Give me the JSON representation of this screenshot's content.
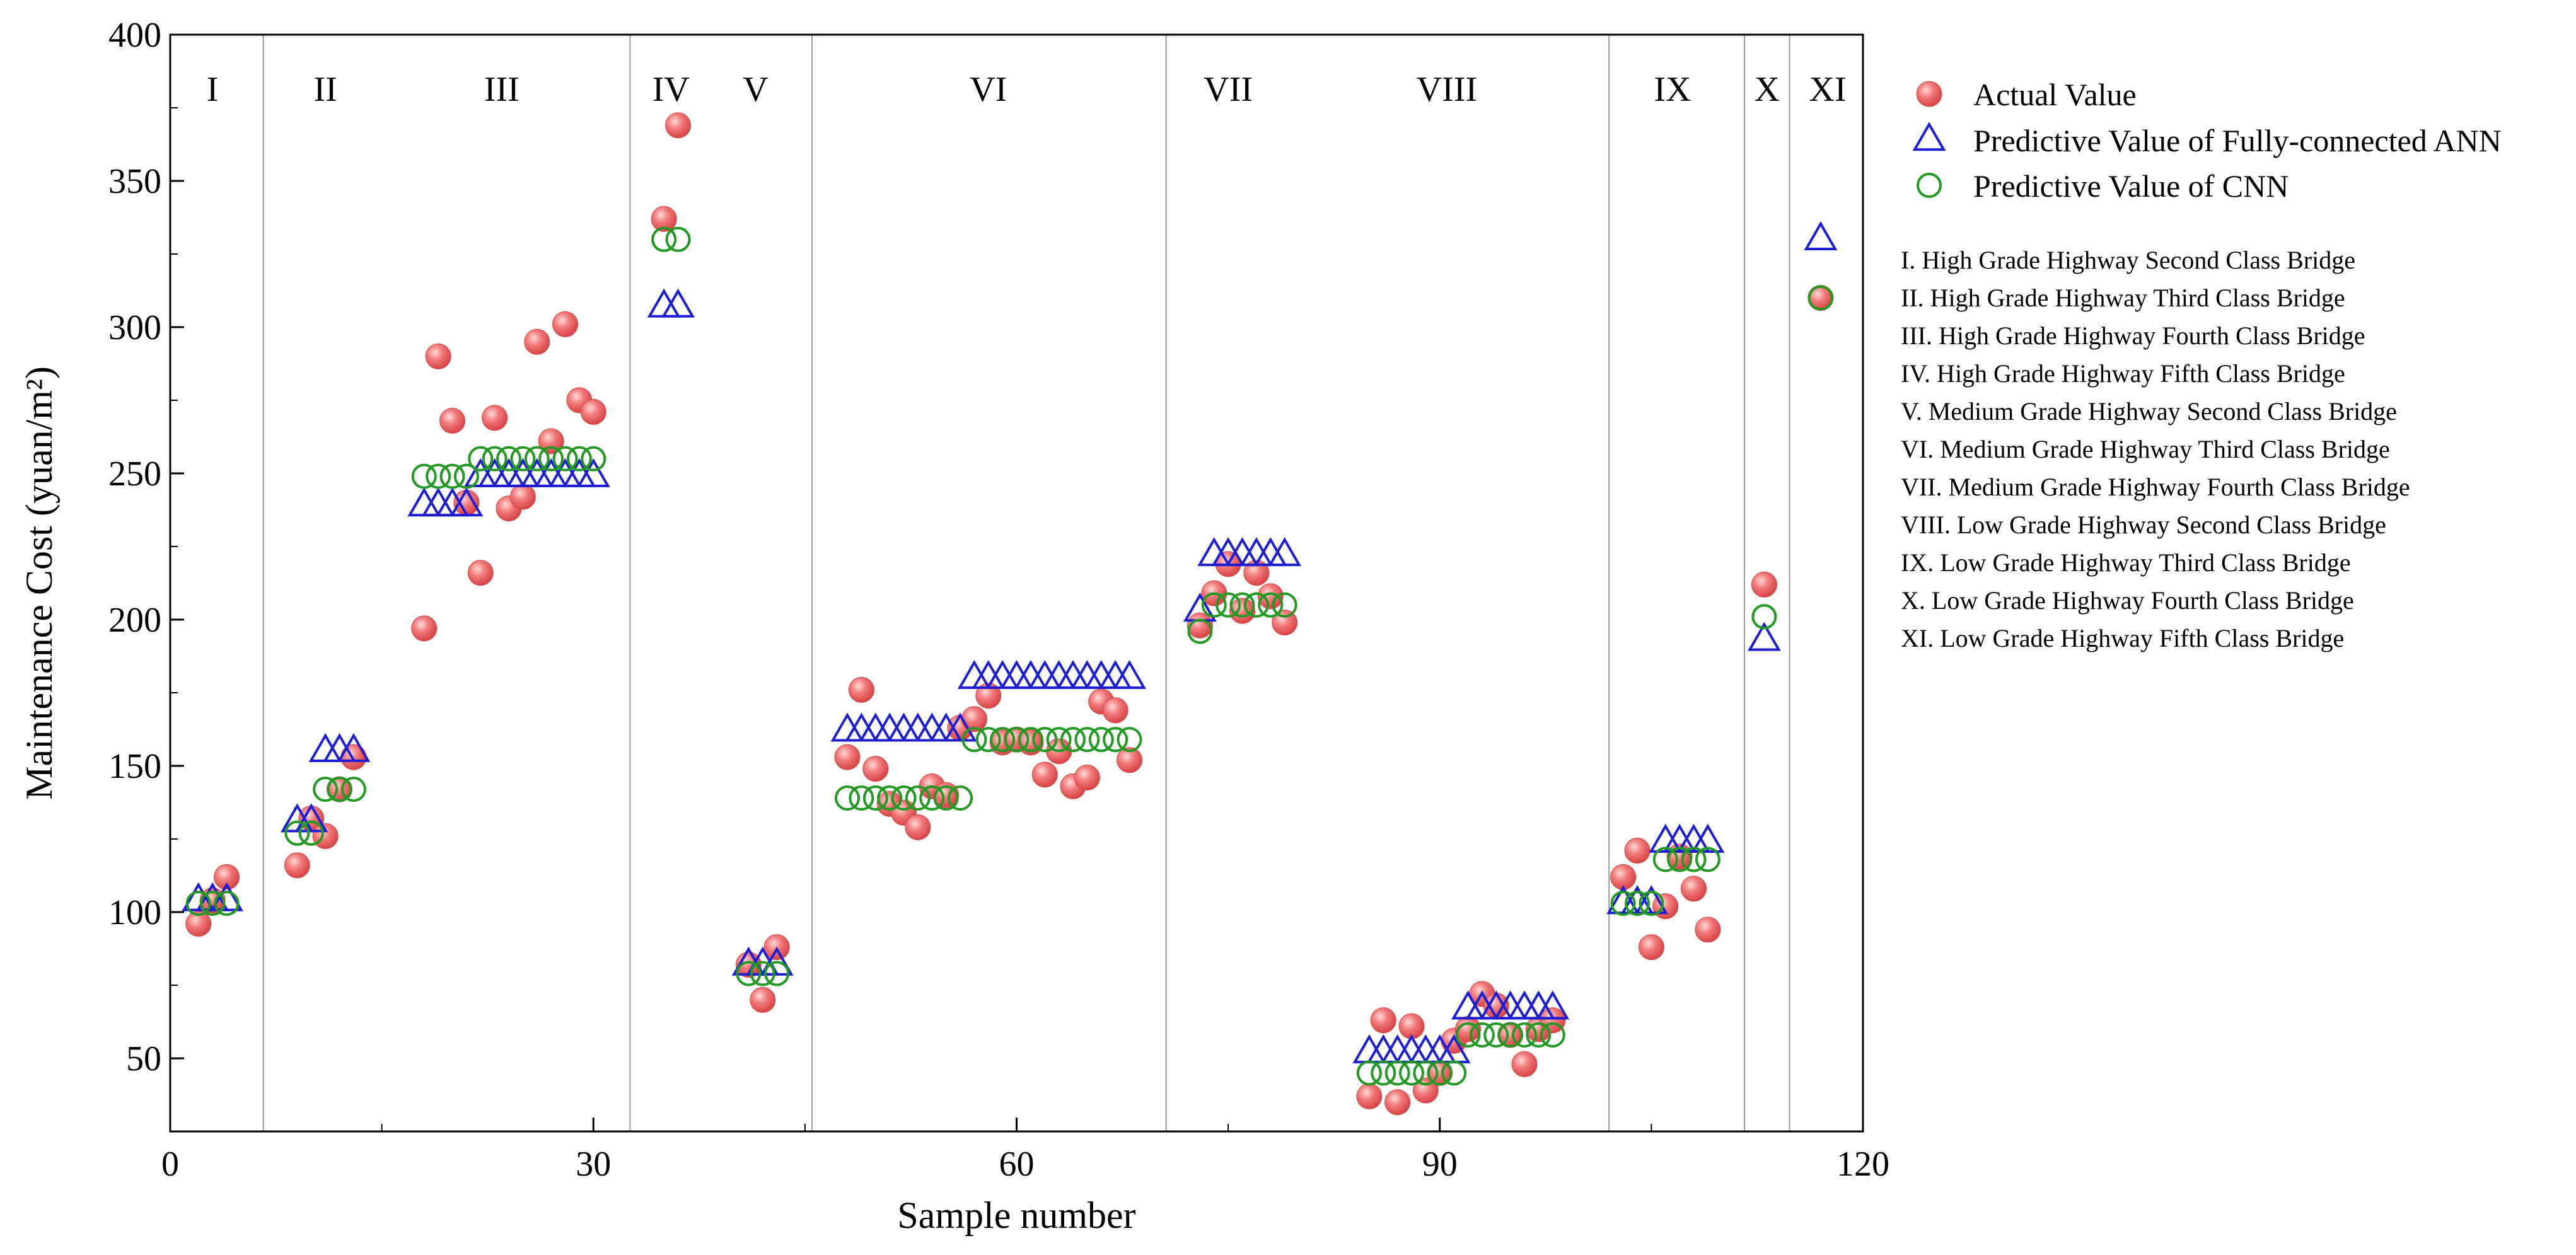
{
  "chart_data": {
    "type": "scatter",
    "xlabel": "Sample number",
    "ylabel": "Maintenance Cost (yuan/m²)",
    "xlim": [
      0,
      120
    ],
    "ylim": [
      25,
      400
    ],
    "x_ticks": [
      0,
      30,
      60,
      90,
      120
    ],
    "y_ticks": [
      50,
      100,
      150,
      200,
      250,
      300,
      350,
      400
    ],
    "grid": false,
    "legend_position": "outside-right",
    "colors": {
      "actual": "#f0686a",
      "ann": "#1d1dd6",
      "cnn": "#229922",
      "divider": "#9a9a9a"
    },
    "group_dividers": [
      6.6,
      32.6,
      45.5,
      70.6,
      102,
      111.6,
      114.8
    ],
    "group_labels": [
      {
        "label": "I",
        "x": 3
      },
      {
        "label": "II",
        "x": 11
      },
      {
        "label": "III",
        "x": 23.5
      },
      {
        "label": "IV",
        "x": 35.5
      },
      {
        "label": "V",
        "x": 41.5
      },
      {
        "label": "VI",
        "x": 58
      },
      {
        "label": "VII",
        "x": 75
      },
      {
        "label": "VIII",
        "x": 90.5
      },
      {
        "label": "IX",
        "x": 106.5
      },
      {
        "label": "X",
        "x": 113.2
      },
      {
        "label": "XI",
        "x": 117.5
      }
    ],
    "series": [
      {
        "name": "Actual Value",
        "marker": "sphere",
        "points": [
          [
            2,
            96
          ],
          [
            3,
            104
          ],
          [
            4,
            112
          ],
          [
            9,
            116
          ],
          [
            10,
            132
          ],
          [
            11,
            126
          ],
          [
            12,
            142
          ],
          [
            13,
            153
          ],
          [
            18,
            197
          ],
          [
            19,
            290
          ],
          [
            20,
            268
          ],
          [
            21,
            240
          ],
          [
            22,
            216
          ],
          [
            23,
            269
          ],
          [
            24,
            238
          ],
          [
            25,
            242
          ],
          [
            26,
            295
          ],
          [
            27,
            261
          ],
          [
            28,
            301
          ],
          [
            29,
            275
          ],
          [
            30,
            271
          ],
          [
            35,
            337
          ],
          [
            36,
            369
          ],
          [
            41,
            82
          ],
          [
            42,
            70
          ],
          [
            43,
            88
          ],
          [
            48,
            153
          ],
          [
            49,
            176
          ],
          [
            50,
            149
          ],
          [
            51,
            137
          ],
          [
            52,
            134
          ],
          [
            53,
            129
          ],
          [
            54,
            143
          ],
          [
            55,
            140
          ],
          [
            56,
            163
          ],
          [
            57,
            166
          ],
          [
            58,
            174
          ],
          [
            59,
            158
          ],
          [
            60,
            159
          ],
          [
            61,
            158
          ],
          [
            62,
            147
          ],
          [
            63,
            155
          ],
          [
            64,
            143
          ],
          [
            65,
            146
          ],
          [
            66,
            172
          ],
          [
            67,
            169
          ],
          [
            68,
            152
          ],
          [
            73,
            198
          ],
          [
            74,
            209
          ],
          [
            75,
            219
          ],
          [
            76,
            203
          ],
          [
            77,
            216
          ],
          [
            78,
            208
          ],
          [
            79,
            199
          ],
          [
            85,
            37
          ],
          [
            86,
            63
          ],
          [
            87,
            35
          ],
          [
            88,
            61
          ],
          [
            89,
            39
          ],
          [
            90,
            45
          ],
          [
            91,
            56
          ],
          [
            92,
            60
          ],
          [
            93,
            72
          ],
          [
            94,
            68
          ],
          [
            95,
            58
          ],
          [
            96,
            48
          ],
          [
            97,
            60
          ],
          [
            98,
            63
          ],
          [
            103,
            112
          ],
          [
            104,
            121
          ],
          [
            105,
            88
          ],
          [
            106,
            102
          ],
          [
            107,
            119
          ],
          [
            108,
            108
          ],
          [
            109,
            94
          ],
          [
            113,
            212
          ],
          [
            117,
            310
          ]
        ]
      },
      {
        "name": "Predictive Value of Fully-connected ANN",
        "marker": "triangle",
        "points": [
          [
            2,
            104
          ],
          [
            3,
            104
          ],
          [
            4,
            104
          ],
          [
            9,
            131
          ],
          [
            10,
            131
          ],
          [
            11,
            155
          ],
          [
            12,
            155
          ],
          [
            13,
            155
          ],
          [
            18,
            239
          ],
          [
            19,
            239
          ],
          [
            20,
            239
          ],
          [
            21,
            239
          ],
          [
            22,
            249
          ],
          [
            23,
            249
          ],
          [
            24,
            249
          ],
          [
            25,
            249
          ],
          [
            26,
            249
          ],
          [
            27,
            249
          ],
          [
            28,
            249
          ],
          [
            29,
            249
          ],
          [
            30,
            249
          ],
          [
            35,
            307
          ],
          [
            36,
            307
          ],
          [
            41,
            82
          ],
          [
            42,
            82
          ],
          [
            43,
            82
          ],
          [
            48,
            162
          ],
          [
            49,
            162
          ],
          [
            50,
            162
          ],
          [
            51,
            162
          ],
          [
            52,
            162
          ],
          [
            53,
            162
          ],
          [
            54,
            162
          ],
          [
            55,
            162
          ],
          [
            56,
            162
          ],
          [
            57,
            180
          ],
          [
            58,
            180
          ],
          [
            59,
            180
          ],
          [
            60,
            180
          ],
          [
            61,
            180
          ],
          [
            62,
            180
          ],
          [
            63,
            180
          ],
          [
            64,
            180
          ],
          [
            65,
            180
          ],
          [
            66,
            180
          ],
          [
            67,
            180
          ],
          [
            68,
            180
          ],
          [
            73,
            203
          ],
          [
            74,
            222
          ],
          [
            75,
            222
          ],
          [
            76,
            222
          ],
          [
            77,
            222
          ],
          [
            78,
            222
          ],
          [
            79,
            222
          ],
          [
            85,
            52
          ],
          [
            86,
            52
          ],
          [
            87,
            52
          ],
          [
            88,
            52
          ],
          [
            89,
            52
          ],
          [
            90,
            52
          ],
          [
            91,
            52
          ],
          [
            92,
            67
          ],
          [
            93,
            67
          ],
          [
            94,
            67
          ],
          [
            95,
            67
          ],
          [
            96,
            67
          ],
          [
            97,
            67
          ],
          [
            98,
            67
          ],
          [
            103,
            103
          ],
          [
            104,
            103
          ],
          [
            105,
            103
          ],
          [
            106,
            124
          ],
          [
            107,
            124
          ],
          [
            108,
            124
          ],
          [
            109,
            124
          ],
          [
            113,
            193
          ],
          [
            117,
            330
          ]
        ]
      },
      {
        "name": "Predictive Value of CNN",
        "marker": "circle",
        "points": [
          [
            2,
            103
          ],
          [
            3,
            103
          ],
          [
            4,
            103
          ],
          [
            9,
            127
          ],
          [
            10,
            127
          ],
          [
            11,
            142
          ],
          [
            12,
            142
          ],
          [
            13,
            142
          ],
          [
            18,
            249
          ],
          [
            19,
            249
          ],
          [
            20,
            249
          ],
          [
            21,
            249
          ],
          [
            22,
            255
          ],
          [
            23,
            255
          ],
          [
            24,
            255
          ],
          [
            25,
            255
          ],
          [
            26,
            255
          ],
          [
            27,
            255
          ],
          [
            28,
            255
          ],
          [
            29,
            255
          ],
          [
            30,
            255
          ],
          [
            35,
            330
          ],
          [
            36,
            330
          ],
          [
            41,
            79
          ],
          [
            42,
            79
          ],
          [
            43,
            79
          ],
          [
            48,
            139
          ],
          [
            49,
            139
          ],
          [
            50,
            139
          ],
          [
            51,
            139
          ],
          [
            52,
            139
          ],
          [
            53,
            139
          ],
          [
            54,
            139
          ],
          [
            55,
            139
          ],
          [
            56,
            139
          ],
          [
            57,
            159
          ],
          [
            58,
            159
          ],
          [
            59,
            159
          ],
          [
            60,
            159
          ],
          [
            61,
            159
          ],
          [
            62,
            159
          ],
          [
            63,
            159
          ],
          [
            64,
            159
          ],
          [
            65,
            159
          ],
          [
            66,
            159
          ],
          [
            67,
            159
          ],
          [
            68,
            159
          ],
          [
            73,
            196
          ],
          [
            74,
            205
          ],
          [
            75,
            205
          ],
          [
            76,
            205
          ],
          [
            77,
            205
          ],
          [
            78,
            205
          ],
          [
            79,
            205
          ],
          [
            85,
            45
          ],
          [
            86,
            45
          ],
          [
            87,
            45
          ],
          [
            88,
            45
          ],
          [
            89,
            45
          ],
          [
            90,
            45
          ],
          [
            91,
            45
          ],
          [
            92,
            58
          ],
          [
            93,
            58
          ],
          [
            94,
            58
          ],
          [
            95,
            58
          ],
          [
            96,
            58
          ],
          [
            97,
            58
          ],
          [
            98,
            58
          ],
          [
            103,
            103
          ],
          [
            104,
            103
          ],
          [
            105,
            103
          ],
          [
            106,
            118
          ],
          [
            107,
            118
          ],
          [
            108,
            118
          ],
          [
            109,
            118
          ],
          [
            113,
            201
          ],
          [
            117,
            310
          ]
        ]
      }
    ],
    "category_notes": [
      "I. High Grade Highway Second Class Bridge",
      "II. High Grade Highway Third Class Bridge",
      "III. High Grade Highway Fourth Class Bridge",
      "IV. High Grade Highway Fifth Class Bridge",
      "V. Medium Grade Highway Second Class Bridge",
      "VI. Medium Grade Highway Third Class Bridge",
      "VII. Medium Grade Highway Fourth Class Bridge",
      "VIII. Low Grade Highway Second Class Bridge",
      "IX. Low Grade Highway Third Class Bridge",
      "X. Low Grade Highway Fourth Class Bridge",
      "XI. Low Grade Highway Fifth Class Bridge"
    ]
  }
}
